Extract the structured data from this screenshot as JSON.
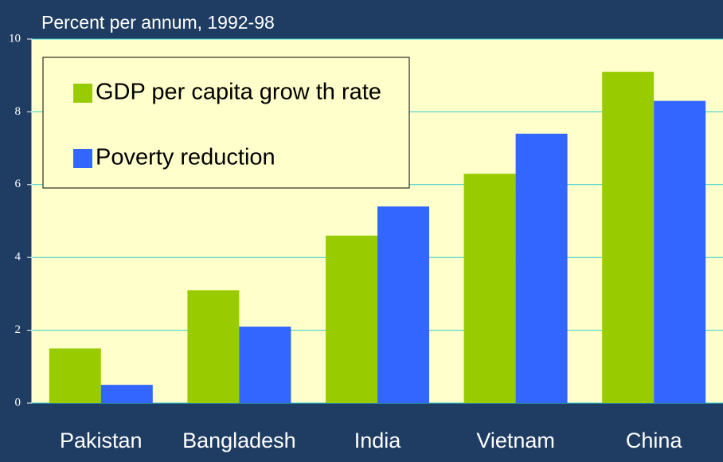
{
  "chart_data": {
    "type": "bar",
    "title": "Percent per annum, 1992-98",
    "categories": [
      "Pakistan",
      "Bangladesh",
      "India",
      "Vietnam",
      "China"
    ],
    "series": [
      {
        "name": "GDP per capita grow th rate",
        "color": "#99cc00",
        "values": [
          1.5,
          3.1,
          4.6,
          6.3,
          9.1
        ]
      },
      {
        "name": "Poverty reduction",
        "color": "#3366ff",
        "values": [
          0.5,
          2.1,
          5.4,
          7.4,
          8.3
        ]
      }
    ],
    "ylim": [
      0,
      10
    ],
    "yticks": [
      0,
      2,
      4,
      6,
      8,
      10
    ],
    "grid": true,
    "legend": "upper left"
  }
}
